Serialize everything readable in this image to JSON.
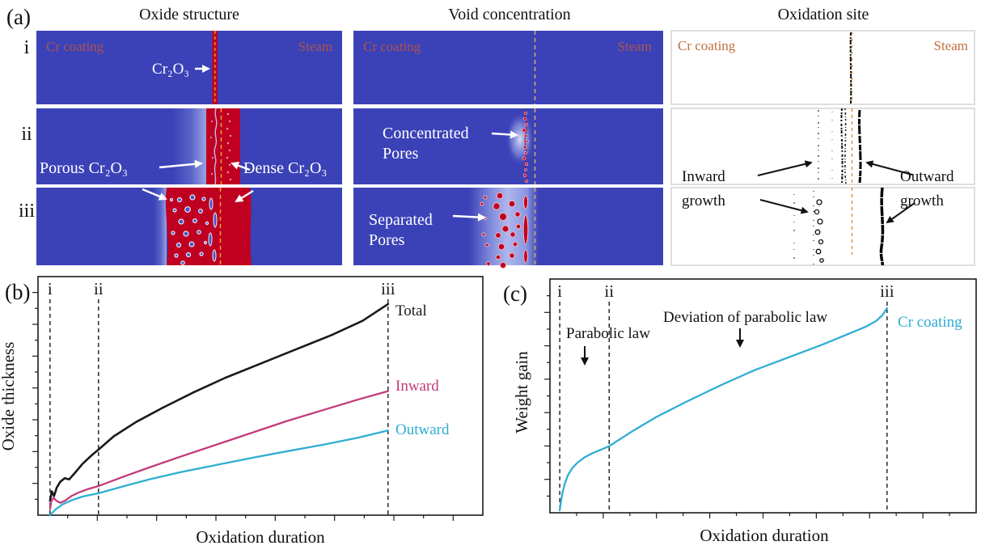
{
  "colors": {
    "simulation_blue": "#3b42b7",
    "oxide_red": "#c00021",
    "label_red": "#b0524e",
    "label_orange": "#c0703d",
    "interface_dash_yellow": "#efa22b",
    "interface_dash_tan": "#cfa96b",
    "interface_dash_orange": "#d87c28",
    "chart_black": "#1a1a1a",
    "chart_pink": "#c23b7a",
    "chart_cyan": "#2fadd3",
    "white_label": "#ffffff"
  },
  "panel_a": {
    "label": "(a)",
    "row_labels": [
      "i",
      "ii",
      "iii"
    ],
    "col1": {
      "title": "Oxide structure",
      "cr_coating": "Cr coating",
      "steam": "Steam",
      "cr2o3": "Cr₂O₃",
      "porous": "Porous Cr₂O₃",
      "dense": "Dense Cr₂O₃"
    },
    "col2": {
      "title": "Void concentration",
      "cr_coating": "Cr coating",
      "steam": "Steam",
      "concentrated_line1": "Concentrated",
      "concentrated_line2": "Pores",
      "separated_line1": "Separated",
      "separated_line2": "Pores"
    },
    "col3": {
      "title": "Oxidation site",
      "cr_coating": "Cr coating",
      "steam": "Steam",
      "inward_line1": "Inward",
      "inward_line2": "growth",
      "outward_line1": "Outward",
      "outward_line2": "growth"
    }
  },
  "chart_data": [
    {
      "id": "b",
      "type": "line",
      "panel_label": "(b)",
      "xlabel": "Oxidation duration",
      "ylabel": "Oxide thickness",
      "tick_labels": "none (unlabeled tick marks)",
      "axis_range_note": "x and y normalized 0-1 of plotted span",
      "markers": [
        {
          "label": "i",
          "x": 0.027
        },
        {
          "label": "ii",
          "x": 0.136
        },
        {
          "label": "iii",
          "x": 0.787
        }
      ],
      "series": [
        {
          "name": "Total",
          "color": "#1a1a1a",
          "width": 2.6,
          "points": [
            [
              0.027,
              0.06
            ],
            [
              0.031,
              0.1
            ],
            [
              0.036,
              0.08
            ],
            [
              0.042,
              0.115
            ],
            [
              0.05,
              0.14
            ],
            [
              0.06,
              0.155
            ],
            [
              0.07,
              0.15
            ],
            [
              0.082,
              0.175
            ],
            [
              0.1,
              0.215
            ],
            [
              0.12,
              0.25
            ],
            [
              0.136,
              0.275
            ],
            [
              0.17,
              0.33
            ],
            [
              0.22,
              0.39
            ],
            [
              0.28,
              0.45
            ],
            [
              0.35,
              0.515
            ],
            [
              0.42,
              0.575
            ],
            [
              0.5,
              0.635
            ],
            [
              0.58,
              0.695
            ],
            [
              0.66,
              0.755
            ],
            [
              0.73,
              0.815
            ],
            [
              0.787,
              0.885
            ]
          ]
        },
        {
          "name": "Inward",
          "color": "#c23b7a",
          "width": 2.3,
          "points": [
            [
              0.027,
              0.025
            ],
            [
              0.03,
              0.06
            ],
            [
              0.035,
              0.072
            ],
            [
              0.042,
              0.06
            ],
            [
              0.05,
              0.052
            ],
            [
              0.06,
              0.06
            ],
            [
              0.075,
              0.08
            ],
            [
              0.09,
              0.094
            ],
            [
              0.11,
              0.108
            ],
            [
              0.136,
              0.122
            ],
            [
              0.19,
              0.16
            ],
            [
              0.25,
              0.2
            ],
            [
              0.32,
              0.245
            ],
            [
              0.4,
              0.295
            ],
            [
              0.48,
              0.345
            ],
            [
              0.56,
              0.395
            ],
            [
              0.64,
              0.44
            ],
            [
              0.72,
              0.485
            ],
            [
              0.787,
              0.52
            ]
          ]
        },
        {
          "name": "Outward",
          "color": "#2fadd3",
          "width": 2.3,
          "points": [
            [
              0.027,
              0.0
            ],
            [
              0.04,
              0.025
            ],
            [
              0.055,
              0.045
            ],
            [
              0.075,
              0.062
            ],
            [
              0.1,
              0.078
            ],
            [
              0.136,
              0.092
            ],
            [
              0.19,
              0.12
            ],
            [
              0.25,
              0.15
            ],
            [
              0.32,
              0.18
            ],
            [
              0.4,
              0.21
            ],
            [
              0.48,
              0.24
            ],
            [
              0.56,
              0.268
            ],
            [
              0.64,
              0.295
            ],
            [
              0.72,
              0.325
            ],
            [
              0.787,
              0.355
            ]
          ]
        }
      ]
    },
    {
      "id": "c",
      "type": "line",
      "panel_label": "(c)",
      "xlabel": "Oxidation duration",
      "ylabel": "Weight gain",
      "tick_labels": "none (unlabeled tick marks)",
      "axis_range_note": "x and y normalized 0-1 of plotted span",
      "annotations": [
        {
          "text": "Parabolic law"
        },
        {
          "text": "Deviation of parabolic law"
        }
      ],
      "markers": [
        {
          "label": "i",
          "x": 0.023
        },
        {
          "label": "ii",
          "x": 0.139
        },
        {
          "label": "iii",
          "x": 0.791
        }
      ],
      "series": [
        {
          "name": "Cr coating",
          "color": "#2fadd3",
          "width": 2.3,
          "points": [
            [
              0.023,
              0.01
            ],
            [
              0.026,
              0.05
            ],
            [
              0.03,
              0.09
            ],
            [
              0.035,
              0.125
            ],
            [
              0.042,
              0.16
            ],
            [
              0.052,
              0.19
            ],
            [
              0.065,
              0.215
            ],
            [
              0.082,
              0.238
            ],
            [
              0.1,
              0.255
            ],
            [
              0.12,
              0.27
            ],
            [
              0.139,
              0.285
            ],
            [
              0.19,
              0.345
            ],
            [
              0.25,
              0.41
            ],
            [
              0.32,
              0.475
            ],
            [
              0.4,
              0.545
            ],
            [
              0.48,
              0.61
            ],
            [
              0.56,
              0.665
            ],
            [
              0.64,
              0.72
            ],
            [
              0.7,
              0.765
            ],
            [
              0.74,
              0.795
            ],
            [
              0.765,
              0.82
            ],
            [
              0.78,
              0.845
            ],
            [
              0.791,
              0.875
            ]
          ]
        }
      ]
    }
  ]
}
